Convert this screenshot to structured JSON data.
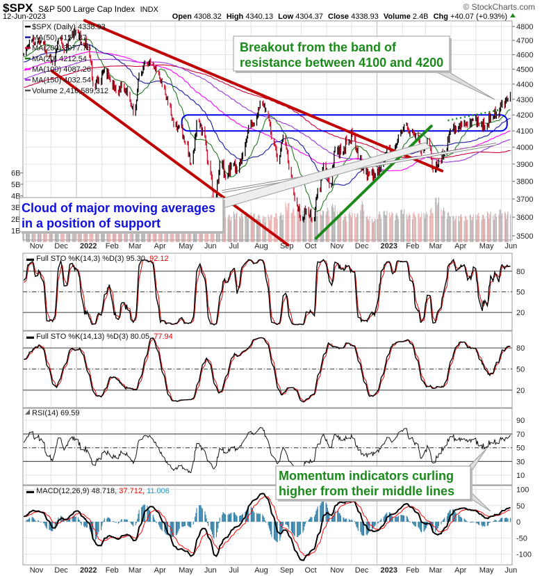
{
  "header": {
    "symbol": "$SPX",
    "name": "S&P 500 Large Cap Index",
    "exchange": "INDX",
    "date": "12-Jun-2023",
    "watermark": "© StockCharts.com",
    "quote": {
      "open_label": "Open",
      "open": "4308.32",
      "high_label": "High",
      "high": "4340.13",
      "low_label": "Low",
      "low": "4304.37",
      "close_label": "Close",
      "close": "4338.93",
      "volume_label": "Volume",
      "volume": "2.4B",
      "chg_label": "Chg",
      "chg": "+40.07 (+0.93%)"
    }
  },
  "colors": {
    "price_up": "#000000",
    "price_down": "#d0102a",
    "ma20": "#1f7a1f",
    "ma50": "#1515a0",
    "ma100": "#ff00ff",
    "ma150": "#9933dd",
    "ma200": "#cc0033",
    "trend_red": "#c00000",
    "trend_green": "#1a8a1a",
    "band_blue": "#0000ee",
    "macd_hist": "#2e7ea6",
    "signal": "#ff0000"
  },
  "chart_data": [
    {
      "type": "line",
      "title": "$SPX (Daily) 4338.93",
      "scale": "log",
      "ylim": [
        3480,
        4830
      ],
      "yticks": [
        3500,
        3600,
        3700,
        3800,
        3900,
        4000,
        4100,
        4200,
        4300,
        4400,
        4500,
        4600,
        4700,
        4800
      ],
      "volume_ticks": [
        "1B",
        "2B",
        "3B",
        "4B",
        "5B",
        "6B"
      ],
      "x_ticks": [
        {
          "label": "Nov",
          "date": "2021-11-01"
        },
        {
          "label": "Dec",
          "date": "2021-12-01"
        },
        {
          "label": "2022",
          "date": "2022-01-01",
          "bold": true
        },
        {
          "label": "Feb",
          "date": "2022-02-01"
        },
        {
          "label": "Mar",
          "date": "2022-03-01"
        },
        {
          "label": "Apr",
          "date": "2022-04-01"
        },
        {
          "label": "May",
          "date": "2022-05-01"
        },
        {
          "label": "Jun",
          "date": "2022-06-01"
        },
        {
          "label": "Jul",
          "date": "2022-07-01"
        },
        {
          "label": "Aug",
          "date": "2022-08-01"
        },
        {
          "label": "Sep",
          "date": "2022-09-01"
        },
        {
          "label": "Oct",
          "date": "2022-10-01"
        },
        {
          "label": "Nov",
          "date": "2022-11-01"
        },
        {
          "label": "Dec",
          "date": "2022-12-01"
        },
        {
          "label": "2023",
          "date": "2023-01-01",
          "bold": true
        },
        {
          "label": "Feb",
          "date": "2023-02-01"
        },
        {
          "label": "Mar",
          "date": "2023-03-01"
        },
        {
          "label": "Apr",
          "date": "2023-04-01"
        },
        {
          "label": "May",
          "date": "2023-05-01"
        },
        {
          "label": "Jun",
          "date": "2023-06-01"
        }
      ],
      "legend": [
        {
          "key": "price",
          "label": "$SPX (Daily) 4338.93"
        },
        {
          "key": "ma50",
          "label": "MA(50) 4157.87"
        },
        {
          "key": "ma200",
          "label": "MA(200) 3977.76"
        },
        {
          "key": "ma20",
          "label": "MA(20) 4212.54"
        },
        {
          "key": "ma100",
          "label": "MA(100) 4087.26"
        },
        {
          "key": "ma150",
          "label": "MA(150) 4032.54"
        },
        {
          "key": "volume",
          "label": "Volume 2,416,589,312"
        }
      ],
      "weekly_start": "2021-10-29",
      "weekly_close": [
        4605,
        4697,
        4683,
        4698,
        4595,
        4538,
        4712,
        4620,
        4726,
        4766,
        4677,
        4663,
        4398,
        4432,
        4500,
        4419,
        4349,
        4385,
        4329,
        4204,
        4463,
        4543,
        4546,
        4488,
        4393,
        4272,
        4132,
        4123,
        4024,
        3901,
        4158,
        4108,
        3901,
        3675,
        3912,
        3825,
        3899,
        3863,
        3962,
        4130,
        4145,
        4280,
        4228,
        4058,
        3924,
        4067,
        3873,
        3693,
        3586,
        3639,
        3583,
        3752,
        3901,
        3771,
        3993,
        3965,
        4026,
        4072,
        3934,
        3852,
        3845,
        3840,
        3895,
        3999,
        3973,
        4071,
        4136,
        4090,
        4079,
        3970,
        4046,
        3862,
        3917,
        3971,
        4109,
        4105,
        4138,
        4133,
        4169,
        4136,
        4124,
        4192,
        4205,
        4282,
        4299
      ],
      "weekly_volume_b": [
        2.4,
        2.5,
        2.3,
        2.4,
        2.6,
        3.0,
        2.6,
        3.4,
        2.0,
        1.9,
        2.8,
        2.7,
        3.2,
        3.0,
        2.6,
        2.5,
        2.6,
        2.8,
        2.7,
        2.9,
        3.3,
        2.4,
        2.3,
        2.2,
        2.4,
        2.6,
        2.8,
        3.0,
        3.1,
        2.9,
        2.3,
        2.2,
        2.6,
        3.6,
        2.7,
        2.2,
        2.1,
        2.3,
        2.2,
        2.3,
        2.2,
        2.1,
        2.0,
        2.1,
        2.2,
        2.2,
        3.0,
        2.6,
        2.7,
        2.4,
        2.5,
        2.5,
        2.4,
        2.6,
        2.9,
        2.4,
        2.1,
        2.3,
        2.2,
        3.1,
        2.0,
        1.8,
        2.3,
        2.4,
        2.3,
        2.2,
        2.5,
        2.2,
        2.3,
        2.2,
        2.3,
        2.6,
        3.4,
        2.6,
        2.3,
        2.0,
        2.1,
        2.0,
        2.1,
        2.2,
        2.1,
        2.3,
        2.2,
        2.5,
        2.3
      ],
      "last": {
        "date": "2023-06-12",
        "close": 4338.93,
        "volume_b": 2.42
      },
      "annotations": {
        "trendlines": [
          {
            "name": "upper-resistance",
            "color": "trend_red",
            "from": [
              "2022-01-11",
              4843
            ],
            "to": [
              "2023-03-21",
              3860
            ]
          },
          {
            "name": "lower-channel",
            "color": "trend_red",
            "from": [
              "2021-12-02",
              4489
            ],
            "to": [
              "2022-09-15",
              3452
            ]
          },
          {
            "name": "rising-support",
            "color": "trend_green",
            "from": [
              "2022-10-19",
              3487
            ],
            "to": [
              "2023-03-08",
              4130
            ]
          },
          {
            "name": "ma-cloud-support",
            "color": "gray",
            "from": [
              "2022-06-27",
              3742
            ],
            "to": [
              "2023-05-26",
              4020
            ]
          }
        ],
        "resistance_band": {
          "low": 4100,
          "high": 4200,
          "from": "2022-05-09",
          "to": "2023-06-08"
        },
        "breakout_line": {
          "from": [
            "2023-03-28",
            4165
          ],
          "to": [
            "2023-06-01",
            4235
          ]
        },
        "callout_breakout": [
          "Breakout from the band of",
          "resistance between 4100 and 4200"
        ],
        "callout_cloud": [
          "Cloud of major moving averages",
          "in a position of support"
        ],
        "callout_momentum": [
          "Momentum indicators curling",
          "higher from their middle lines"
        ]
      }
    },
    {
      "type": "line",
      "name": "Full STO (14,3,3)",
      "legend_label": "Full STO %K(14,3) %D(3) 95.30,",
      "k_value": "95.30",
      "d_value": "92.12",
      "ylim": [
        0,
        100
      ],
      "yticks": [
        "20",
        "50",
        "80"
      ],
      "k_smooth": 3,
      "d_smooth": 3
    },
    {
      "type": "line",
      "name": "Full STO (14,13,3)",
      "legend_label": "Full STO %K(14,13) %D(3) 80.05,",
      "k_value": "80.05",
      "d_value": "77.94",
      "ylim": [
        0,
        100
      ],
      "yticks": [
        "20",
        "50",
        "80"
      ],
      "k_smooth": 13,
      "d_smooth": 3
    },
    {
      "type": "line",
      "name": "RSI(14)",
      "legend_label": "RSI(14) 69.59",
      "ylim": [
        0,
        100
      ],
      "yticks": [
        "10",
        "30",
        "50",
        "70",
        "90"
      ]
    },
    {
      "type": "line",
      "name": "MACD(12,26,9)",
      "legend_label": "MACD(12,26,9) 48.718,",
      "macd_value": "48.718",
      "signal_value": "37.712,",
      "hist_value": "11.006",
      "ylim": [
        -120,
        110
      ],
      "yticks": [
        "-100",
        "-50",
        "0",
        "50",
        "100"
      ]
    }
  ]
}
